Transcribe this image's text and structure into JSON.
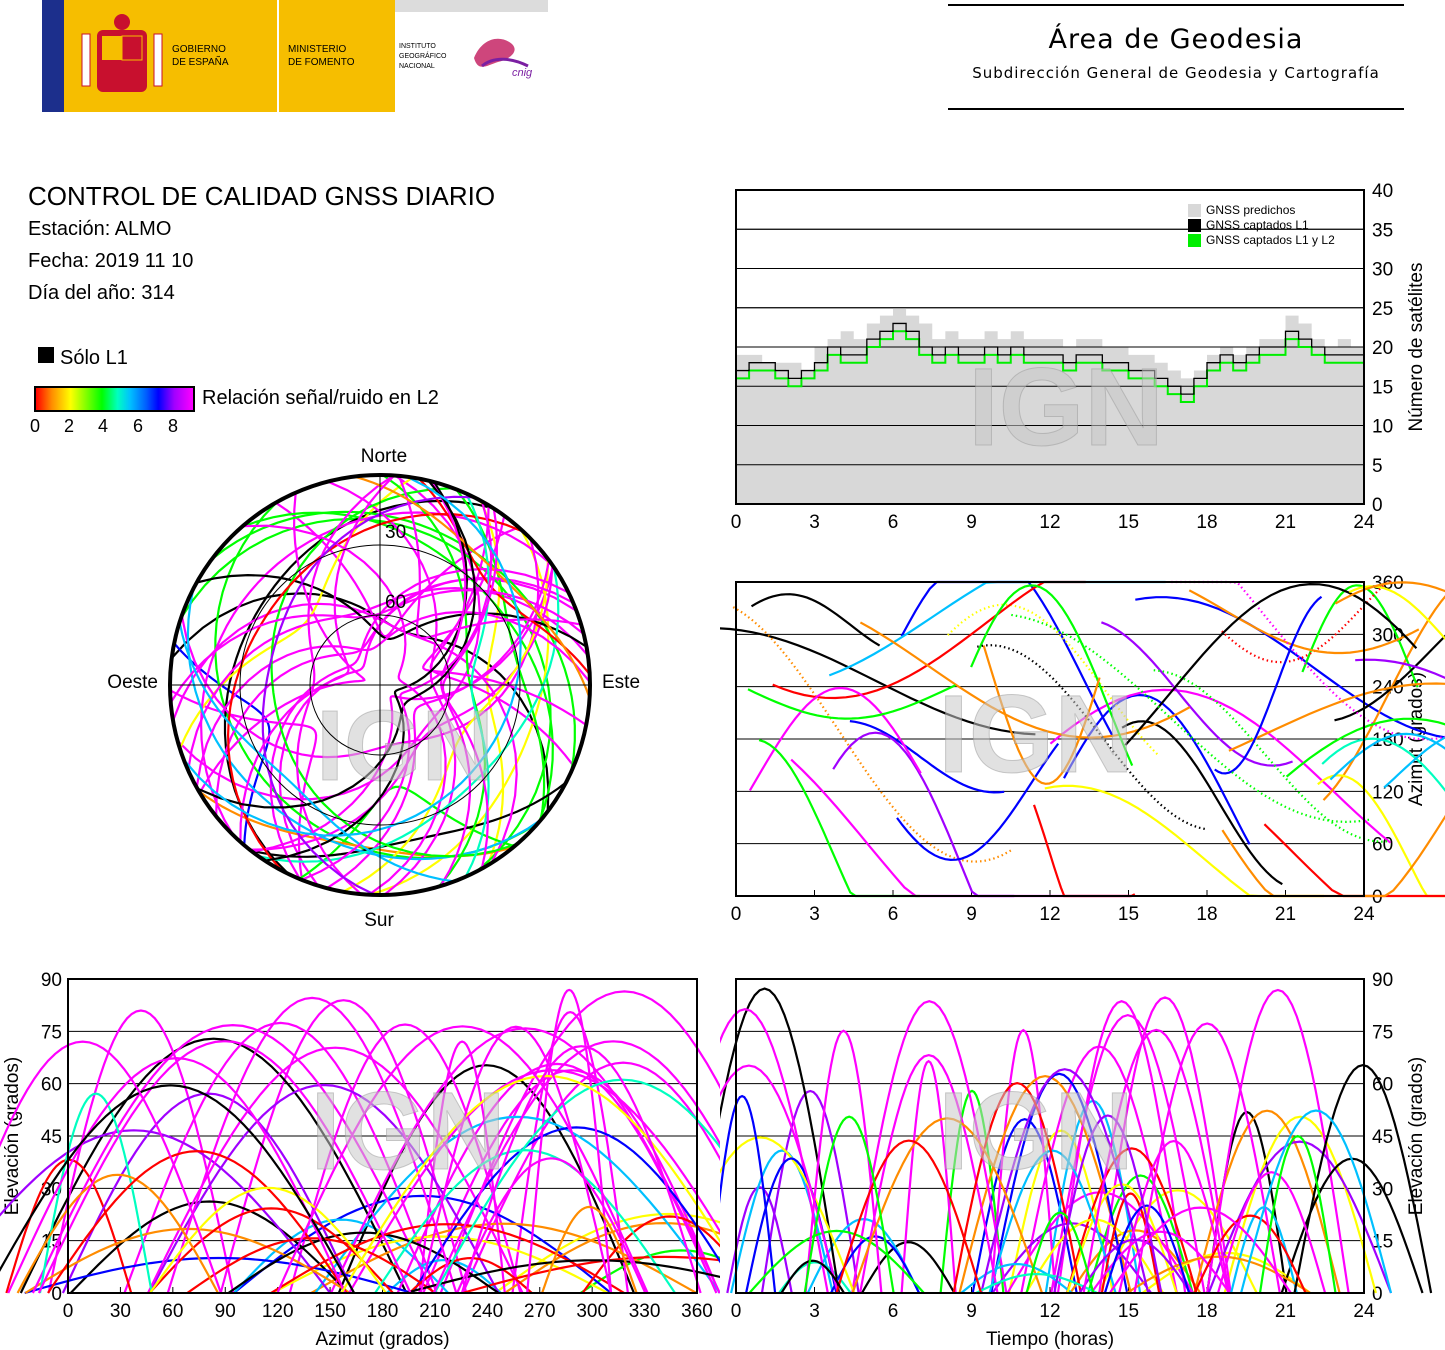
{
  "header": {
    "gov_line1": "GOBIERNO",
    "gov_line2": "DE ESPAÑA",
    "min_line1": "MINISTERIO",
    "min_line2": "DE FOMENTO",
    "ign_line1": "INSTITUTO",
    "ign_line2": "GEOGRÁFICO",
    "ign_line3": "NACIONAL",
    "cnig": "cnig",
    "area_title": "Área de Geodesia",
    "area_subtitle": "Subdirección General de Geodesia y Cartografía"
  },
  "info": {
    "title": "CONTROL DE CALIDAD GNSS DIARIO",
    "station": "Estación: ALMO",
    "date": "Fecha: 2019 11 10",
    "doy": "Día del año: 314"
  },
  "legend": {
    "l1_only": "Sólo L1",
    "colorbar_label": "Relación señal/ruido en L2",
    "colorbar_ticks": [
      "0",
      "2",
      "4",
      "6",
      "8"
    ],
    "colorbar_stops": [
      "#ff0000",
      "#ff8c00",
      "#ffff00",
      "#00ff00",
      "#00ffc0",
      "#00c0ff",
      "#0000ff",
      "#a000ff",
      "#ff00ff"
    ]
  },
  "watermark": "IGN",
  "chart_data": [
    {
      "type": "line",
      "name": "satellite-count",
      "x_range": [
        0,
        24
      ],
      "x_ticks": [
        "0",
        "3",
        "6",
        "9",
        "12",
        "15",
        "18",
        "21",
        "24"
      ],
      "ylim": [
        0,
        40
      ],
      "y_ticks": [
        "0",
        "5",
        "10",
        "15",
        "20",
        "25",
        "30",
        "35",
        "40"
      ],
      "ylabel": "Número de satélites",
      "legend_position": "top-right",
      "x": [
        0,
        0.5,
        1,
        1.5,
        2,
        2.5,
        3,
        3.5,
        4,
        4.5,
        5,
        5.5,
        6,
        6.5,
        7,
        7.5,
        8,
        8.5,
        9,
        9.5,
        10,
        10.5,
        11,
        11.5,
        12,
        12.5,
        13,
        13.5,
        14,
        14.5,
        15,
        15.5,
        16,
        16.5,
        17,
        17.5,
        18,
        18.5,
        19,
        19.5,
        20,
        20.5,
        21,
        21.5,
        22,
        22.5,
        23,
        23.5,
        24
      ],
      "series": [
        {
          "name": "GNSS predichos",
          "color": "#d8d8d8",
          "values": [
            19,
            19,
            18,
            18,
            18,
            17,
            20,
            21,
            22,
            21,
            23,
            24,
            25,
            24,
            23,
            21,
            22,
            21,
            21,
            22,
            21,
            22,
            21,
            21,
            21,
            20,
            21,
            21,
            20,
            20,
            19,
            19,
            18,
            17,
            16,
            17,
            19,
            20,
            19,
            20,
            21,
            21,
            24,
            23,
            21,
            20,
            21,
            20,
            20
          ]
        },
        {
          "name": "GNSS captados L1",
          "color": "#000000",
          "values": [
            17,
            18,
            18,
            17,
            16,
            17,
            18,
            20,
            19,
            19,
            21,
            22,
            23,
            22,
            20,
            19,
            20,
            19,
            19,
            20,
            19,
            20,
            19,
            19,
            19,
            18,
            19,
            19,
            18,
            18,
            17,
            17,
            16,
            15,
            14,
            16,
            18,
            19,
            18,
            19,
            20,
            20,
            22,
            21,
            20,
            19,
            19,
            19,
            18
          ]
        },
        {
          "name": "GNSS captados L1 y L2",
          "color": "#00ee00",
          "values": [
            16,
            17,
            17,
            16,
            15,
            16,
            17,
            19,
            18,
            18,
            20,
            21,
            22,
            21,
            19,
            18,
            19,
            18,
            18,
            19,
            18,
            19,
            18,
            18,
            18,
            17,
            18,
            18,
            17,
            17,
            16,
            16,
            15,
            14,
            13,
            15,
            17,
            18,
            17,
            18,
            19,
            19,
            21,
            20,
            19,
            18,
            18,
            18,
            17
          ]
        }
      ]
    },
    {
      "type": "scatter",
      "name": "azimuth-vs-time",
      "x_range": [
        0,
        24
      ],
      "x_ticks": [
        "0",
        "3",
        "6",
        "9",
        "12",
        "15",
        "18",
        "21",
        "24"
      ],
      "ylim": [
        0,
        360
      ],
      "y_ticks": [
        "0",
        "60",
        "120",
        "180",
        "240",
        "300",
        "360"
      ],
      "ylabel": "Azimut (grados)"
    },
    {
      "type": "scatter",
      "name": "elevation-vs-azimuth",
      "x_range": [
        0,
        360
      ],
      "x_ticks": [
        "0",
        "30",
        "60",
        "90",
        "120",
        "150",
        "180",
        "210",
        "240",
        "270",
        "300",
        "330",
        "360"
      ],
      "xlabel": "Azimut (grados)",
      "ylim": [
        0,
        90
      ],
      "y_ticks": [
        "0",
        "15",
        "30",
        "45",
        "60",
        "75",
        "90"
      ],
      "ylabel": "Elevación (grados)"
    },
    {
      "type": "scatter",
      "name": "elevation-vs-time",
      "x_range": [
        0,
        24
      ],
      "x_ticks": [
        "0",
        "3",
        "6",
        "9",
        "12",
        "15",
        "18",
        "21",
        "24"
      ],
      "xlabel": "Tiempo (horas)",
      "ylim": [
        0,
        90
      ],
      "y_ticks": [
        "0",
        "15",
        "30",
        "45",
        "60",
        "75",
        "90"
      ],
      "ylabel": "Elevación (grados)"
    },
    {
      "type": "scatter",
      "name": "skyplot",
      "directions": {
        "north": "Norte",
        "south": "Sur",
        "west": "Oeste",
        "east": "Este"
      },
      "ring_labels": [
        "30",
        "60"
      ]
    }
  ]
}
